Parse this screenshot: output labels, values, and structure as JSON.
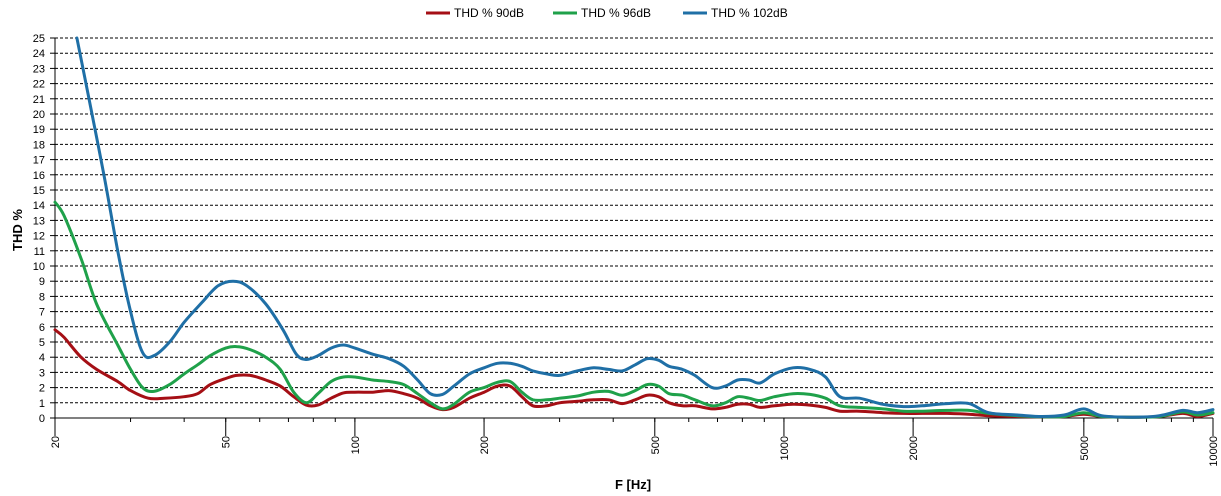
{
  "chart_data": {
    "type": "line",
    "xlabel": "F [Hz]",
    "ylabel": "THD %",
    "xscale": "log",
    "xlim": [
      20,
      10000
    ],
    "ylim": [
      0,
      25
    ],
    "grid": "horizontal dashed",
    "legend_position": "top",
    "x_ticks": [
      "20",
      "50",
      "100",
      "200",
      "500",
      "1000",
      "2000",
      "5000",
      "10000"
    ],
    "x_tick_values": [
      20,
      50,
      100,
      200,
      500,
      1000,
      2000,
      5000,
      10000
    ],
    "y_ticks": [
      "0",
      "1",
      "2",
      "3",
      "4",
      "5",
      "6",
      "7",
      "8",
      "9",
      "10",
      "11",
      "12",
      "13",
      "14",
      "15",
      "16",
      "17",
      "18",
      "19",
      "20",
      "21",
      "22",
      "23",
      "24",
      "25"
    ],
    "series": [
      {
        "name": "THD % 90dB",
        "color": "#a50f15",
        "points": [
          [
            20,
            5.8
          ],
          [
            21,
            5.3
          ],
          [
            23,
            4.0
          ],
          [
            25,
            3.2
          ],
          [
            28,
            2.4
          ],
          [
            30,
            1.8
          ],
          [
            33,
            1.3
          ],
          [
            36,
            1.3
          ],
          [
            40,
            1.4
          ],
          [
            43,
            1.6
          ],
          [
            46,
            2.2
          ],
          [
            50,
            2.6
          ],
          [
            53,
            2.8
          ],
          [
            57,
            2.8
          ],
          [
            62,
            2.5
          ],
          [
            67,
            2.1
          ],
          [
            72,
            1.4
          ],
          [
            77,
            0.85
          ],
          [
            82,
            0.85
          ],
          [
            88,
            1.3
          ],
          [
            94,
            1.65
          ],
          [
            100,
            1.7
          ],
          [
            110,
            1.7
          ],
          [
            120,
            1.8
          ],
          [
            130,
            1.6
          ],
          [
            140,
            1.3
          ],
          [
            150,
            0.8
          ],
          [
            160,
            0.55
          ],
          [
            170,
            0.7
          ],
          [
            185,
            1.3
          ],
          [
            200,
            1.7
          ],
          [
            215,
            2.1
          ],
          [
            230,
            2.1
          ],
          [
            245,
            1.4
          ],
          [
            260,
            0.8
          ],
          [
            280,
            0.8
          ],
          [
            300,
            1.0
          ],
          [
            330,
            1.1
          ],
          [
            360,
            1.2
          ],
          [
            390,
            1.2
          ],
          [
            420,
            0.95
          ],
          [
            450,
            1.2
          ],
          [
            480,
            1.5
          ],
          [
            510,
            1.4
          ],
          [
            540,
            1.0
          ],
          [
            580,
            0.8
          ],
          [
            620,
            0.8
          ],
          [
            680,
            0.6
          ],
          [
            730,
            0.7
          ],
          [
            780,
            0.9
          ],
          [
            830,
            0.9
          ],
          [
            880,
            0.7
          ],
          [
            950,
            0.8
          ],
          [
            1050,
            0.9
          ],
          [
            1150,
            0.85
          ],
          [
            1250,
            0.7
          ],
          [
            1350,
            0.45
          ],
          [
            1500,
            0.45
          ],
          [
            1700,
            0.35
          ],
          [
            1900,
            0.3
          ],
          [
            2100,
            0.3
          ],
          [
            2400,
            0.3
          ],
          [
            2700,
            0.25
          ],
          [
            3000,
            0.15
          ],
          [
            3500,
            0.1
          ],
          [
            4000,
            0.08
          ],
          [
            4500,
            0.1
          ],
          [
            5000,
            0.25
          ],
          [
            5500,
            0.1
          ],
          [
            6500,
            0.05
          ],
          [
            7500,
            0.1
          ],
          [
            8500,
            0.3
          ],
          [
            9200,
            0.1
          ],
          [
            10000,
            0.3
          ]
        ]
      },
      {
        "name": "THD % 96dB",
        "color": "#1fa14a",
        "points": [
          [
            20,
            14.2
          ],
          [
            21,
            13.3
          ],
          [
            23,
            10.5
          ],
          [
            25,
            7.5
          ],
          [
            28,
            4.8
          ],
          [
            30,
            3.2
          ],
          [
            32,
            2.0
          ],
          [
            34,
            1.75
          ],
          [
            37,
            2.2
          ],
          [
            40,
            2.9
          ],
          [
            43,
            3.5
          ],
          [
            46,
            4.1
          ],
          [
            50,
            4.6
          ],
          [
            53,
            4.7
          ],
          [
            57,
            4.5
          ],
          [
            62,
            4.0
          ],
          [
            67,
            3.2
          ],
          [
            72,
            1.7
          ],
          [
            77,
            1.0
          ],
          [
            82,
            1.6
          ],
          [
            88,
            2.4
          ],
          [
            94,
            2.7
          ],
          [
            100,
            2.7
          ],
          [
            110,
            2.5
          ],
          [
            120,
            2.4
          ],
          [
            130,
            2.2
          ],
          [
            140,
            1.6
          ],
          [
            150,
            1.0
          ],
          [
            160,
            0.6
          ],
          [
            170,
            0.9
          ],
          [
            185,
            1.7
          ],
          [
            200,
            2.0
          ],
          [
            215,
            2.35
          ],
          [
            230,
            2.4
          ],
          [
            245,
            1.7
          ],
          [
            260,
            1.2
          ],
          [
            280,
            1.2
          ],
          [
            300,
            1.3
          ],
          [
            330,
            1.45
          ],
          [
            360,
            1.7
          ],
          [
            390,
            1.75
          ],
          [
            420,
            1.5
          ],
          [
            450,
            1.8
          ],
          [
            480,
            2.2
          ],
          [
            510,
            2.1
          ],
          [
            540,
            1.6
          ],
          [
            580,
            1.5
          ],
          [
            620,
            1.2
          ],
          [
            680,
            0.8
          ],
          [
            730,
            1.0
          ],
          [
            780,
            1.4
          ],
          [
            830,
            1.3
          ],
          [
            880,
            1.15
          ],
          [
            950,
            1.4
          ],
          [
            1050,
            1.6
          ],
          [
            1150,
            1.55
          ],
          [
            1250,
            1.3
          ],
          [
            1350,
            0.8
          ],
          [
            1500,
            0.7
          ],
          [
            1700,
            0.6
          ],
          [
            1900,
            0.45
          ],
          [
            2100,
            0.45
          ],
          [
            2400,
            0.5
          ],
          [
            2700,
            0.5
          ],
          [
            3000,
            0.3
          ],
          [
            3500,
            0.15
          ],
          [
            4000,
            0.08
          ],
          [
            4500,
            0.1
          ],
          [
            5000,
            0.35
          ],
          [
            5500,
            0.1
          ],
          [
            6500,
            0.05
          ],
          [
            7500,
            0.1
          ],
          [
            8500,
            0.4
          ],
          [
            9200,
            0.2
          ],
          [
            10000,
            0.35
          ]
        ]
      },
      {
        "name": "THD % 102dB",
        "color": "#1f6fa6",
        "points": [
          [
            22.5,
            25
          ],
          [
            24,
            21
          ],
          [
            26,
            16
          ],
          [
            28,
            11
          ],
          [
            30,
            7
          ],
          [
            32,
            4.3
          ],
          [
            34,
            4.1
          ],
          [
            37,
            5.0
          ],
          [
            40,
            6.3
          ],
          [
            44,
            7.6
          ],
          [
            48,
            8.7
          ],
          [
            52,
            9.0
          ],
          [
            56,
            8.7
          ],
          [
            62,
            7.5
          ],
          [
            68,
            5.8
          ],
          [
            73,
            4.2
          ],
          [
            77,
            3.85
          ],
          [
            82,
            4.1
          ],
          [
            88,
            4.6
          ],
          [
            94,
            4.8
          ],
          [
            100,
            4.6
          ],
          [
            110,
            4.2
          ],
          [
            120,
            3.9
          ],
          [
            130,
            3.4
          ],
          [
            140,
            2.5
          ],
          [
            150,
            1.6
          ],
          [
            160,
            1.55
          ],
          [
            170,
            2.1
          ],
          [
            185,
            2.9
          ],
          [
            200,
            3.3
          ],
          [
            215,
            3.6
          ],
          [
            230,
            3.6
          ],
          [
            245,
            3.4
          ],
          [
            260,
            3.1
          ],
          [
            280,
            2.9
          ],
          [
            300,
            2.8
          ],
          [
            330,
            3.1
          ],
          [
            360,
            3.3
          ],
          [
            390,
            3.2
          ],
          [
            420,
            3.1
          ],
          [
            450,
            3.5
          ],
          [
            480,
            3.9
          ],
          [
            510,
            3.8
          ],
          [
            540,
            3.4
          ],
          [
            580,
            3.2
          ],
          [
            620,
            2.8
          ],
          [
            680,
            2.0
          ],
          [
            730,
            2.1
          ],
          [
            780,
            2.5
          ],
          [
            830,
            2.5
          ],
          [
            880,
            2.3
          ],
          [
            950,
            2.9
          ],
          [
            1050,
            3.3
          ],
          [
            1150,
            3.2
          ],
          [
            1250,
            2.7
          ],
          [
            1350,
            1.4
          ],
          [
            1500,
            1.3
          ],
          [
            1700,
            0.9
          ],
          [
            1900,
            0.75
          ],
          [
            2100,
            0.8
          ],
          [
            2400,
            0.95
          ],
          [
            2700,
            0.95
          ],
          [
            3000,
            0.35
          ],
          [
            3500,
            0.2
          ],
          [
            4000,
            0.1
          ],
          [
            4500,
            0.2
          ],
          [
            5000,
            0.6
          ],
          [
            5500,
            0.15
          ],
          [
            6500,
            0.05
          ],
          [
            7500,
            0.15
          ],
          [
            8500,
            0.5
          ],
          [
            9200,
            0.35
          ],
          [
            10000,
            0.55
          ]
        ]
      }
    ]
  }
}
